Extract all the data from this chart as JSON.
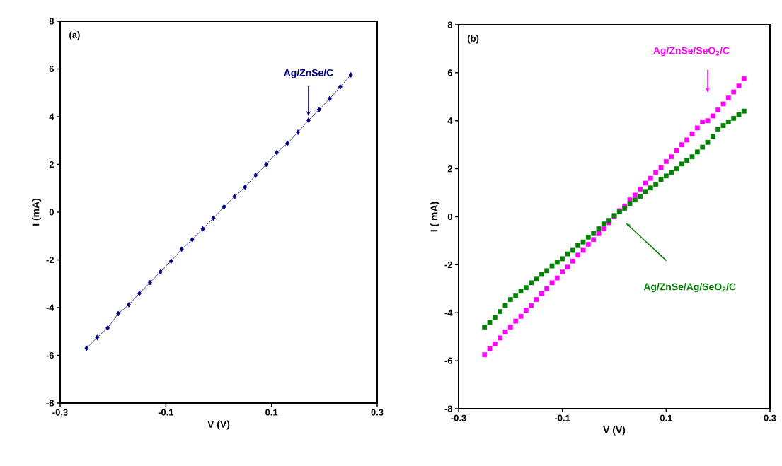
{
  "chart_data": [
    {
      "type": "line",
      "xlabel": "V (V)",
      "ylabel": "I (mA)",
      "annotations": [
        "(a)"
      ],
      "xlim": [
        -0.3,
        0.3
      ],
      "xticks": [
        -0.3,
        -0.1,
        0.1,
        0.3
      ],
      "ylim": [
        -8,
        8
      ],
      "yticks": [
        -8,
        -6,
        -4,
        -2,
        0,
        2,
        4,
        6,
        8
      ],
      "grid": false,
      "x": [
        -0.25,
        -0.23,
        -0.21,
        -0.19,
        -0.17,
        -0.15,
        -0.13,
        -0.11,
        -0.09,
        -0.07,
        -0.05,
        -0.03,
        -0.01,
        0.01,
        0.03,
        0.05,
        0.07,
        0.09,
        0.11,
        0.13,
        0.15,
        0.17,
        0.19,
        0.21,
        0.23,
        0.25
      ],
      "series": [
        {
          "name": "Ag/ZnSe/C",
          "color": "#000080",
          "marker": "diamond",
          "line_style": "solid",
          "values": [
            -5.7,
            -5.25,
            -4.85,
            -4.25,
            -3.88,
            -3.4,
            -2.95,
            -2.5,
            -2.05,
            -1.55,
            -1.15,
            -0.7,
            -0.25,
            0.22,
            0.65,
            1.05,
            1.55,
            2.0,
            2.5,
            2.88,
            3.35,
            3.85,
            4.3,
            4.75,
            5.25,
            5.75
          ]
        }
      ]
    },
    {
      "type": "scatter",
      "xlabel": "V (V)",
      "ylabel": "I ( mA)",
      "annotations": [
        "(b)"
      ],
      "xlim": [
        -0.3,
        0.3
      ],
      "xticks": [
        -0.3,
        -0.1,
        0.1,
        0.3
      ],
      "ylim": [
        -8,
        8
      ],
      "yticks": [
        -8,
        -6,
        -4,
        -2,
        0,
        2,
        4,
        6,
        8
      ],
      "grid": false,
      "x": [
        -0.25,
        -0.24,
        -0.23,
        -0.22,
        -0.21,
        -0.2,
        -0.19,
        -0.18,
        -0.17,
        -0.16,
        -0.15,
        -0.14,
        -0.13,
        -0.12,
        -0.11,
        -0.1,
        -0.09,
        -0.08,
        -0.07,
        -0.06,
        -0.05,
        -0.04,
        -0.03,
        -0.02,
        -0.01,
        0,
        0.01,
        0.02,
        0.03,
        0.04,
        0.05,
        0.06,
        0.07,
        0.08,
        0.09,
        0.1,
        0.11,
        0.12,
        0.13,
        0.14,
        0.15,
        0.16,
        0.17,
        0.18,
        0.19,
        0.2,
        0.21,
        0.22,
        0.23,
        0.24,
        0.25
      ],
      "series": [
        {
          "name": "Ag/ZnSe/SeO$_{2}$/C",
          "color": "#ff00ff",
          "marker": "square",
          "values": [
            -5.75,
            -5.5,
            -5.3,
            -5.05,
            -4.8,
            -4.6,
            -4.35,
            -4.15,
            -3.9,
            -3.7,
            -3.45,
            -3.2,
            -3.0,
            -2.75,
            -2.55,
            -2.3,
            -2.1,
            -1.85,
            -1.6,
            -1.4,
            -1.15,
            -0.95,
            -0.7,
            -0.5,
            -0.25,
            0,
            0.25,
            0.45,
            0.7,
            0.9,
            1.15,
            1.4,
            1.6,
            1.85,
            2.05,
            2.3,
            2.5,
            2.75,
            3.0,
            3.2,
            3.45,
            3.7,
            3.95,
            4.0,
            4.2,
            4.45,
            4.7,
            4.95,
            5.2,
            5.45,
            5.75
          ]
        },
        {
          "name": "Ag/ZnSe/Ag/SeO$_{2}$/C",
          "color": "#008000",
          "marker": "square",
          "values": [
            -4.6,
            -4.4,
            -4.2,
            -3.95,
            -3.7,
            -3.45,
            -3.3,
            -3.1,
            -2.95,
            -2.75,
            -2.6,
            -2.4,
            -2.25,
            -2.05,
            -1.9,
            -1.75,
            -1.55,
            -1.4,
            -1.2,
            -1.05,
            -0.85,
            -0.7,
            -0.5,
            -0.3,
            -0.15,
            0.05,
            0.2,
            0.35,
            0.55,
            0.7,
            0.85,
            1.05,
            1.2,
            1.35,
            1.55,
            1.7,
            1.85,
            2.0,
            2.2,
            2.35,
            2.5,
            2.7,
            2.9,
            3.1,
            3.35,
            3.65,
            3.8,
            3.95,
            4.1,
            4.25,
            4.4
          ]
        }
      ]
    }
  ]
}
